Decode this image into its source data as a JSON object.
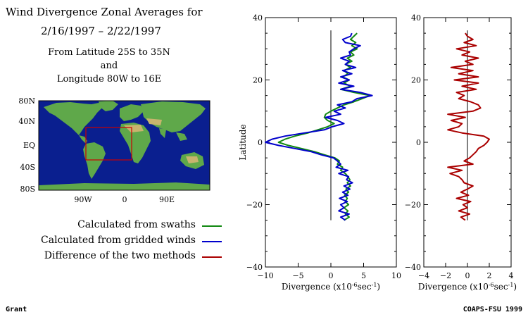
{
  "header": {
    "title": "Wind Divergence Zonal Averages for",
    "date_range": "2/16/1997 – 2/22/1997",
    "lat_range": "From Latitude 25S to 35N",
    "and": "and",
    "lon_range": "Longitude 80W to 16E"
  },
  "map": {
    "y_ticks": [
      "80N",
      "40N",
      "EQ",
      "40S",
      "80S"
    ],
    "x_ticks": [
      "90W",
      "0",
      "90E"
    ],
    "ocean_color": "#0a1f8f",
    "land_color": "#5fa84a",
    "box_color": "#cc0000"
  },
  "legend": [
    {
      "label": "Calculated from swaths",
      "color": "#118811"
    },
    {
      "label": "Calculated from gridded winds",
      "color": "#0000cc"
    },
    {
      "label": "Difference of the two methods",
      "color": "#aa0000"
    }
  ],
  "footer": {
    "author": "Grant",
    "credit": "COAPS-FSU 1999"
  },
  "chart_data": [
    {
      "type": "line",
      "ylabel": "Latitude",
      "xlabel_main": "Divergence (x10",
      "xlabel_exp1": "-6",
      "xlabel_mid": "sec",
      "xlabel_exp2": "-1",
      "xlabel_end": ")",
      "xlim": [
        -10,
        10
      ],
      "ylim": [
        -40,
        40
      ],
      "x_ticks": [
        "−10",
        "−5",
        "0",
        "5",
        "10"
      ],
      "y_ticks": [
        "40",
        "20",
        "0",
        "−20",
        "−40"
      ],
      "y": [
        -25,
        -24,
        -23,
        -22,
        -21,
        -20,
        -19,
        -18,
        -17,
        -16,
        -15,
        -14,
        -13,
        -12,
        -11,
        -10,
        -9,
        -8,
        -7,
        -6,
        -5,
        -4,
        -3,
        -2,
        -1,
        0,
        1,
        2,
        3,
        4,
        5,
        6,
        7,
        8,
        9,
        10,
        11,
        12,
        13,
        14,
        15,
        16,
        17,
        18,
        19,
        20,
        21,
        22,
        23,
        24,
        25,
        26,
        27,
        28,
        29,
        30,
        31,
        32,
        33,
        34,
        35
      ],
      "series": [
        {
          "name": "Calculated from swaths",
          "color": "#118811",
          "values": [
            2.0,
            2.8,
            2.2,
            2.6,
            2.0,
            2.7,
            2.2,
            2.5,
            2.1,
            2.7,
            2.3,
            3.0,
            2.5,
            2.9,
            2.6,
            2.2,
            1.5,
            1.8,
            1.0,
            1.3,
            0.6,
            -1.0,
            -2.5,
            -4.5,
            -6.5,
            -8.0,
            -7.0,
            -5.5,
            -3.5,
            -2.0,
            -0.5,
            0.5,
            -0.5,
            -1.0,
            -0.8,
            0.0,
            1.0,
            2.0,
            3.5,
            4.8,
            6.0,
            3.5,
            1.5,
            3.0,
            2.0,
            2.8,
            1.8,
            2.6,
            2.0,
            3.0,
            2.2,
            3.2,
            2.5,
            3.5,
            3.0,
            4.0,
            3.2,
            3.8,
            3.0,
            3.5,
            4.0
          ]
        },
        {
          "name": "Calculated from gridded winds",
          "color": "#0000cc",
          "values": [
            2.2,
            1.5,
            2.8,
            1.2,
            2.0,
            1.5,
            2.5,
            1.3,
            2.6,
            1.8,
            2.9,
            2.0,
            3.3,
            2.4,
            2.7,
            1.2,
            2.6,
            0.8,
            1.5,
            1.0,
            0.4,
            -1.5,
            -3.0,
            -5.5,
            -8.0,
            -10.0,
            -9.0,
            -7.0,
            -4.0,
            -1.0,
            0.2,
            2.0,
            1.0,
            -0.8,
            1.5,
            0.5,
            2.2,
            1.0,
            3.2,
            4.0,
            6.3,
            4.5,
            1.5,
            3.5,
            1.2,
            2.8,
            1.5,
            3.2,
            1.8,
            3.8,
            2.2,
            2.8,
            1.5,
            3.0,
            2.8,
            3.5,
            4.5,
            2.2,
            1.8,
            3.0,
            3.2
          ]
        }
      ]
    },
    {
      "type": "line",
      "xlabel_main": "Divergence (x10",
      "xlabel_exp1": "-6",
      "xlabel_mid": "sec",
      "xlabel_exp2": "-1",
      "xlabel_end": ")",
      "xlim": [
        -4,
        4
      ],
      "ylim": [
        -40,
        40
      ],
      "x_ticks": [
        "−4",
        "−2",
        "0",
        "2",
        "4"
      ],
      "y_ticks": [
        "40",
        "20",
        "0",
        "−20",
        "−40"
      ],
      "y": [
        -25,
        -24,
        -23,
        -22,
        -21,
        -20,
        -19,
        -18,
        -17,
        -16,
        -15,
        -14,
        -13,
        -12,
        -11,
        -10,
        -9,
        -8,
        -7,
        -6,
        -5,
        -4,
        -3,
        -2,
        -1,
        0,
        1,
        2,
        3,
        4,
        5,
        6,
        7,
        8,
        9,
        10,
        11,
        12,
        13,
        14,
        15,
        16,
        17,
        18,
        19,
        20,
        21,
        22,
        23,
        24,
        25,
        26,
        27,
        28,
        29,
        30,
        31,
        32,
        33,
        34,
        35
      ],
      "series": [
        {
          "name": "Difference of the two methods",
          "color": "#aa0000",
          "values": [
            -0.2,
            -0.6,
            0.2,
            -0.8,
            0.0,
            -0.4,
            0.3,
            -1.0,
            0.1,
            -0.6,
            0.0,
            0.5,
            -0.3,
            -0.5,
            -0.8,
            -1.6,
            -0.5,
            -1.8,
            0.5,
            -0.3,
            0.2,
            0.5,
            0.8,
            1.0,
            1.5,
            1.8,
            2.0,
            1.5,
            -0.5,
            -1.8,
            -0.8,
            -0.5,
            -1.5,
            -0.2,
            -1.8,
            0.5,
            1.2,
            1.0,
            0.3,
            -0.8,
            -0.3,
            -1.0,
            0.8,
            -0.5,
            1.0,
            -1.2,
            1.0,
            -0.8,
            0.5,
            -1.5,
            0.5,
            -0.2,
            1.0,
            -0.5,
            0.2,
            -1.0,
            0.8,
            -0.3,
            0.5,
            0.0,
            -0.2
          ]
        }
      ]
    }
  ]
}
